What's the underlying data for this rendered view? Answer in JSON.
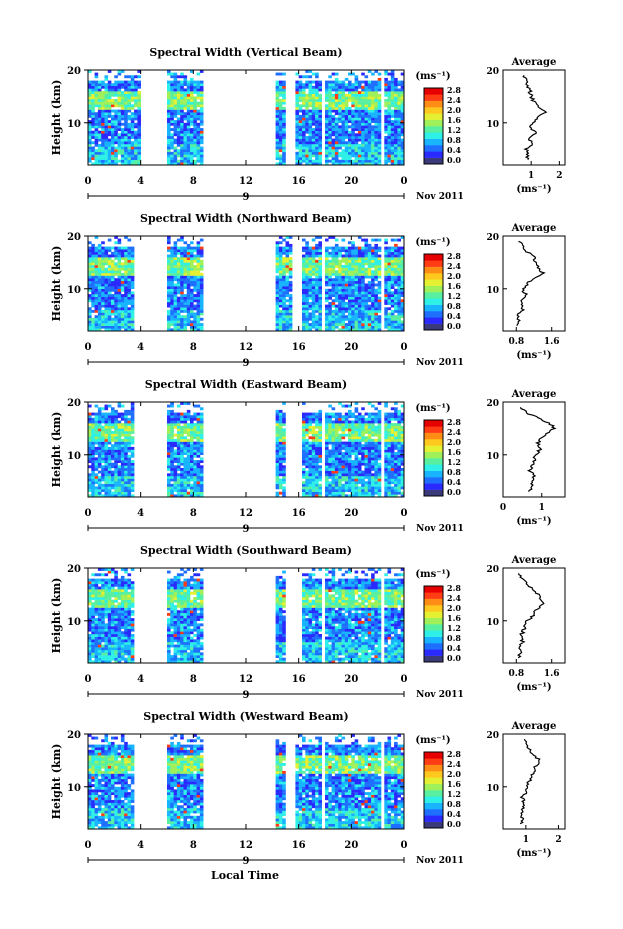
{
  "figure": {
    "xlabel": "Local Time",
    "date_label": "Nov 2011",
    "day_label": "9",
    "colorbar_unit": "(ms⁻¹)",
    "colorbar_ticks": [
      "0.0",
      "0.4",
      "0.8",
      "1.2",
      "1.6",
      "2.0",
      "2.4",
      "2.8"
    ],
    "colorbar_colors": [
      "#3a3a7a",
      "#2a2aff",
      "#1f6fff",
      "#18b4ff",
      "#2ef0e6",
      "#58f0a0",
      "#a0f05a",
      "#e6f032",
      "#ffc81e",
      "#ff8c14",
      "#ff3c14",
      "#e60000"
    ],
    "avg_title": "Average"
  },
  "chart_data": [
    {
      "type": "heatmap",
      "title": "Spectral Width (Vertical Beam)",
      "ylabel": "Height (km)",
      "xlabel": "Local Time",
      "x_ticks": [
        "0",
        "4",
        "8",
        "12",
        "16",
        "20",
        "0"
      ],
      "y_ticks": [
        "10",
        "20"
      ],
      "xlim": [
        0,
        24
      ],
      "ylim": [
        2,
        20
      ],
      "data_gaps_hours": [
        [
          4,
          6
        ],
        [
          8.8,
          14.2
        ],
        [
          15.0,
          15.8
        ],
        [
          17.6,
          18.0
        ],
        [
          22.2,
          22.6
        ]
      ],
      "average": {
        "title": "Average",
        "xlabel": "(ms⁻¹)",
        "x_ticks": [
          "1",
          "2"
        ],
        "y_ticks": [
          "10",
          "20"
        ],
        "xlim": [
          0,
          2.2
        ],
        "ylim": [
          2,
          20
        ],
        "height_km": [
          3,
          4,
          5,
          6,
          7,
          8,
          9,
          10,
          11,
          12,
          13,
          14,
          15,
          16,
          17,
          18,
          19
        ],
        "width_ms": [
          0.85,
          0.9,
          0.8,
          1.1,
          0.9,
          1.2,
          0.95,
          1.05,
          1.2,
          1.5,
          1.3,
          1.1,
          1.0,
          0.95,
          0.9,
          0.8,
          0.75
        ]
      }
    },
    {
      "type": "heatmap",
      "title": "Spectral Width (Northward Beam)",
      "ylabel": "Height (km)",
      "xlabel": "Local Time",
      "x_ticks": [
        "0",
        "4",
        "8",
        "12",
        "16",
        "20",
        "0"
      ],
      "y_ticks": [
        "10",
        "20"
      ],
      "xlim": [
        0,
        24
      ],
      "ylim": [
        2,
        20
      ],
      "data_gaps_hours": [
        [
          3.5,
          6
        ],
        [
          8.8,
          14.2
        ],
        [
          15.4,
          16.2
        ],
        [
          17.6,
          18.1
        ],
        [
          22.2,
          22.6
        ]
      ],
      "average": {
        "title": "Average",
        "xlabel": "(ms⁻¹)",
        "x_ticks": [
          "0.8",
          "1.6"
        ],
        "y_ticks": [
          "10",
          "20"
        ],
        "xlim": [
          0.5,
          1.9
        ],
        "ylim": [
          2,
          20
        ],
        "height_km": [
          3,
          4,
          5,
          6,
          7,
          8,
          9,
          10,
          11,
          12,
          13,
          14,
          15,
          16,
          17,
          18,
          19
        ],
        "width_ms": [
          0.8,
          0.85,
          0.82,
          0.95,
          0.9,
          0.95,
          1.0,
          0.95,
          1.05,
          1.2,
          1.4,
          1.3,
          1.25,
          1.2,
          1.05,
          0.95,
          0.85
        ]
      }
    },
    {
      "type": "heatmap",
      "title": "Spectral Width (Eastward Beam)",
      "ylabel": "Height (km)",
      "xlabel": "Local Time",
      "x_ticks": [
        "0",
        "4",
        "8",
        "12",
        "16",
        "20",
        "0"
      ],
      "y_ticks": [
        "10",
        "20"
      ],
      "xlim": [
        0,
        24
      ],
      "ylim": [
        2,
        20
      ],
      "data_gaps_hours": [
        [
          3.5,
          6
        ],
        [
          8.8,
          14.2
        ],
        [
          15.0,
          16.2
        ],
        [
          17.6,
          18.0
        ],
        [
          22.2,
          22.6
        ]
      ],
      "average": {
        "title": "Average",
        "xlabel": "(ms⁻¹)",
        "x_ticks": [
          "0",
          "1"
        ],
        "y_ticks": [
          "10",
          "20"
        ],
        "xlim": [
          0,
          1.6
        ],
        "ylim": [
          2,
          20
        ],
        "height_km": [
          3,
          4,
          5,
          6,
          7,
          8,
          9,
          10,
          11,
          12,
          13,
          14,
          15,
          16,
          17,
          18,
          19
        ],
        "width_ms": [
          0.7,
          0.72,
          0.75,
          0.8,
          0.7,
          0.75,
          0.8,
          0.85,
          0.95,
          0.9,
          0.95,
          1.1,
          1.35,
          1.2,
          0.9,
          0.6,
          0.45
        ]
      }
    },
    {
      "type": "heatmap",
      "title": "Spectral Width (Southward Beam)",
      "ylabel": "Height (km)",
      "xlabel": "Local Time",
      "x_ticks": [
        "0",
        "4",
        "8",
        "12",
        "16",
        "20",
        "0"
      ],
      "y_ticks": [
        "10",
        "20"
      ],
      "xlim": [
        0,
        24
      ],
      "ylim": [
        2,
        20
      ],
      "data_gaps_hours": [
        [
          3.5,
          6
        ],
        [
          8.8,
          14.2
        ],
        [
          15.0,
          16.2
        ],
        [
          17.6,
          18.0
        ],
        [
          22.2,
          22.6
        ]
      ],
      "average": {
        "title": "Average",
        "xlabel": "(ms⁻¹)",
        "x_ticks": [
          "0.8",
          "1.6"
        ],
        "y_ticks": [
          "10",
          "20"
        ],
        "xlim": [
          0.5,
          1.9
        ],
        "ylim": [
          2,
          20
        ],
        "height_km": [
          3,
          4,
          5,
          6,
          7,
          8,
          9,
          10,
          11,
          12,
          13,
          14,
          15,
          16,
          17,
          18,
          19
        ],
        "width_ms": [
          0.85,
          0.9,
          0.88,
          0.95,
          0.9,
          0.95,
          1.0,
          1.05,
          1.2,
          1.25,
          1.4,
          1.35,
          1.3,
          1.15,
          1.05,
          0.95,
          0.85
        ]
      }
    },
    {
      "type": "heatmap",
      "title": "Spectral Width (Westward Beam)",
      "ylabel": "Height (km)",
      "xlabel": "Local Time",
      "x_ticks": [
        "0",
        "4",
        "8",
        "12",
        "16",
        "20",
        "0"
      ],
      "y_ticks": [
        "10",
        "20"
      ],
      "xlim": [
        0,
        24
      ],
      "ylim": [
        2,
        20
      ],
      "data_gaps_hours": [
        [
          3.5,
          6
        ],
        [
          8.8,
          14.2
        ],
        [
          15.0,
          15.8
        ],
        [
          17.6,
          18.0
        ],
        [
          22.2,
          22.6
        ]
      ],
      "average": {
        "title": "Average",
        "xlabel": "(ms⁻¹)",
        "x_ticks": [
          "1",
          "2"
        ],
        "y_ticks": [
          "10",
          "20"
        ],
        "xlim": [
          0.3,
          2.2
        ],
        "ylim": [
          2,
          20
        ],
        "height_km": [
          3,
          4,
          5,
          6,
          7,
          8,
          9,
          10,
          11,
          12,
          13,
          14,
          15,
          16,
          17,
          18,
          19
        ],
        "width_ms": [
          0.85,
          0.9,
          0.85,
          0.9,
          0.95,
          0.9,
          1.0,
          1.0,
          1.1,
          1.2,
          1.25,
          1.3,
          1.45,
          1.2,
          1.1,
          1.0,
          0.95
        ]
      }
    }
  ]
}
